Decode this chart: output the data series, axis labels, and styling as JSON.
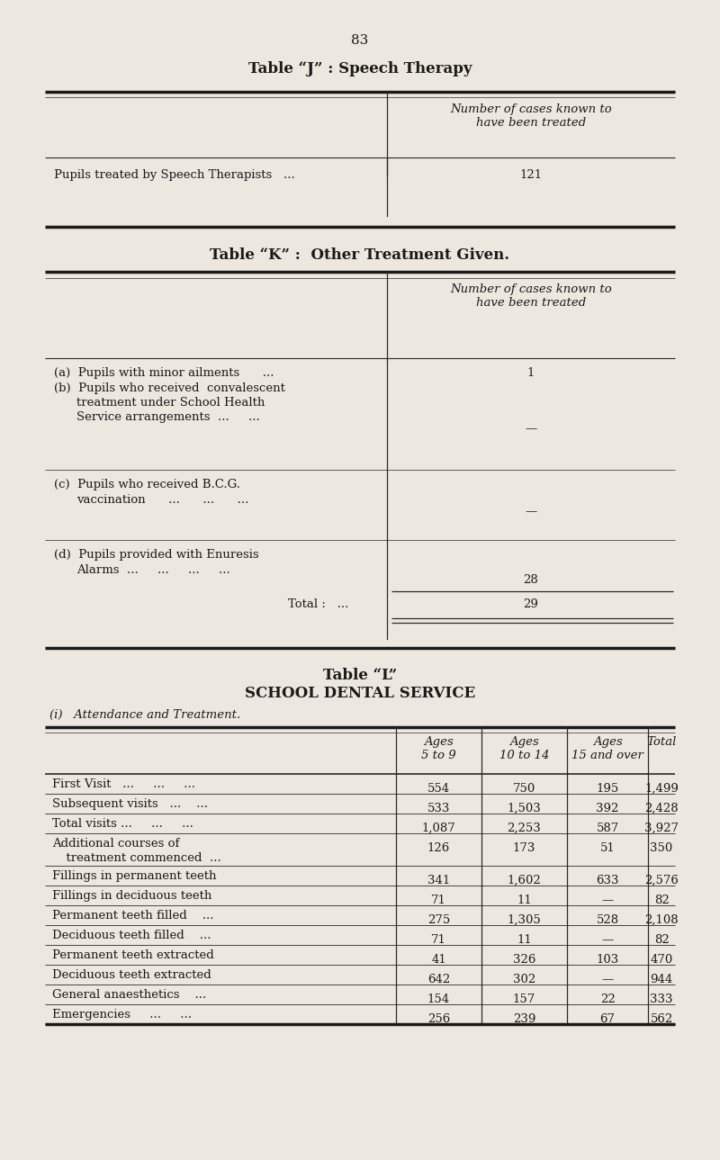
{
  "bg_color": "#ede8df",
  "text_color": "#1a1a1a",
  "page_number": "83",
  "table_j_title": "Table “J” : Speech Therapy",
  "table_j_header": "Number of cases known to\nhave been treated",
  "table_j_row_label": "Pupils treated by Speech Therapists   ...",
  "table_j_row_value": "121",
  "table_k_title": "Table “K” :  Other Treatment Given.",
  "table_k_header": "Number of cases known to\nhave been treated",
  "table_l_title": "Table “L”",
  "table_l_subtitle": "SCHOOL DENTAL SERVICE",
  "table_l_sub2": "(i)   Attendance and Treatment.",
  "table_l_col_headers": [
    "Ages\n5 to 9",
    "Ages\n10 to 14",
    "Ages\n15 and over",
    "Total"
  ],
  "table_l_rows": [
    {
      "label": "First Visit   ...     ...     ...",
      "vals": [
        "554",
        "750",
        "195",
        "1,499"
      ]
    },
    {
      "label": "Subsequent visits   ...    ...",
      "vals": [
        "533",
        "1,503",
        "392",
        "2,428"
      ]
    },
    {
      "label": "Total visits ...     ...     ...",
      "vals": [
        "1,087",
        "2,253",
        "587",
        "3,927"
      ]
    },
    {
      "label": "Additional courses of\n  treatment commenced  ...",
      "vals": [
        "126",
        "173",
        "51",
        "350"
      ]
    },
    {
      "label": "Fillings in permanent teeth",
      "vals": [
        "341",
        "1,602",
        "633",
        "2,576"
      ]
    },
    {
      "label": "Fillings in deciduous teeth",
      "vals": [
        "71",
        "11",
        "—",
        "82"
      ]
    },
    {
      "label": "Permanent teeth filled    ...",
      "vals": [
        "275",
        "1,305",
        "528",
        "2,108"
      ]
    },
    {
      "label": "Deciduous teeth filled    ...",
      "vals": [
        "71",
        "11",
        "—",
        "82"
      ]
    },
    {
      "label": "Permanent teeth extracted",
      "vals": [
        "41",
        "326",
        "103",
        "470"
      ]
    },
    {
      "label": "Deciduous teeth extracted",
      "vals": [
        "642",
        "302",
        "—",
        "944"
      ]
    },
    {
      "label": "General anaesthetics    ...",
      "vals": [
        "154",
        "157",
        "22",
        "333"
      ]
    },
    {
      "label": "Emergencies     ...     ...",
      "vals": [
        "256",
        "239",
        "67",
        "562"
      ]
    }
  ]
}
